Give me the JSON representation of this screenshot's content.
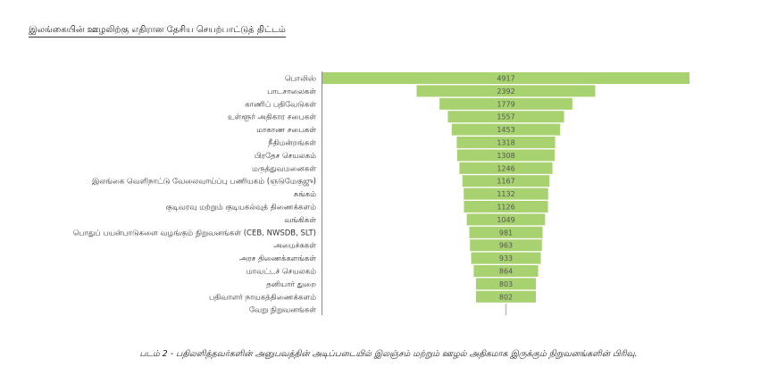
{
  "chart_data": {
    "type": "bar",
    "orientation": "horizontal-centered (funnel)",
    "title": "இலங்கையின் ஊழலிற்கு எதிரான தேசிய செயற்பாட்டுத் திட்டம்",
    "caption": "படம் 2 - பதிலளித்தவர்களின் அனுபவத்தின் அடிப்படையில் இலஞ்சம் மற்றும் ஊழல் அதிகமாக இருக்கும் நிறுவனங்களின் பிரிவு.",
    "categories": [
      "பொலிஸ்",
      "பாடசாலைகள்",
      "காணிப் பதிவேடுகள்",
      "உள்ளூர் அதிகார சபைகள்",
      "மாகாண சபைகள்",
      "நீதிமன்றங்கள்",
      "பிரதேச செயலகம்",
      "மருத்துவமனைகள்",
      "இலங்கை வெளிநாட்டு வேலைவாய்ப்பு பணியகம் (ஞடுமேகுஜு)",
      "சுங்கம்",
      "குடிவரவு மற்றும் குடியகல்வுத் திணைக்களம்",
      "வங்கிகள்",
      "பொதுப் பயன்பாடுகளை வழங்கும் நிறுவனங்கள் (CEB, NWSDB, SLT)",
      "அமைச்சுகள்",
      "அரச திணைக்களங்கள்",
      "மாவட்டச் செயலகம்",
      "தனியார் துறை",
      "பதிவாளர் நாயகத்திணைக்களம்",
      "வேறு நிறுவனங்கள்"
    ],
    "values": [
      4917,
      2392,
      1779,
      1557,
      1453,
      1318,
      1308,
      1246,
      1167,
      1132,
      1126,
      1049,
      981,
      963,
      933,
      864,
      803,
      802,
      10
    ],
    "show_value_labels": [
      true,
      true,
      true,
      true,
      true,
      true,
      true,
      true,
      true,
      true,
      true,
      true,
      true,
      true,
      true,
      true,
      true,
      true,
      false
    ],
    "xlim": [
      0,
      4917
    ],
    "bar_color": "#a8d16f",
    "grid": false
  }
}
